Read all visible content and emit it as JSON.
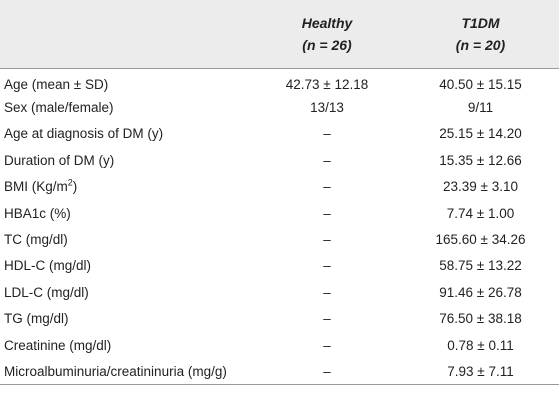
{
  "columns": [
    {
      "title": "",
      "subtitle": ""
    },
    {
      "title": "Healthy",
      "subtitle": "(n = 26)"
    },
    {
      "title": "T1DM",
      "subtitle": "(n = 20)"
    }
  ],
  "rows": [
    {
      "label": "Age (mean ± SD)",
      "healthy": "42.73 ± 12.18",
      "t1dm": "40.50 ± 15.15"
    },
    {
      "label": "Sex (male/female)",
      "healthy": "13/13",
      "t1dm": "9/11"
    },
    {
      "label": "Age at diagnosis of DM (y)",
      "healthy": "–",
      "t1dm": "25.15 ± 14.20"
    },
    {
      "label": "Duration of DM (y)",
      "healthy": "–",
      "t1dm": "15.35 ± 12.66"
    },
    {
      "label": "BMI (Kg/m",
      "label_sup": "2",
      "label_tail": ")",
      "healthy": "–",
      "t1dm": "23.39 ± 3.10"
    },
    {
      "label": "HBA1c (%)",
      "healthy": "–",
      "t1dm": "7.74 ± 1.00"
    },
    {
      "label": "TC (mg/dl)",
      "healthy": "–",
      "t1dm": "165.60 ± 34.26"
    },
    {
      "label": "HDL-C (mg/dl)",
      "healthy": "–",
      "t1dm": "58.75 ± 13.22"
    },
    {
      "label": "LDL-C (mg/dl)",
      "healthy": "–",
      "t1dm": "91.46 ± 26.78"
    },
    {
      "label": "TG (mg/dl)",
      "healthy": "–",
      "t1dm": "76.50 ± 38.18"
    },
    {
      "label": "Creatinine (mg/dl)",
      "healthy": "–",
      "t1dm": "0.78 ± 0.11"
    },
    {
      "label": "Microalbuminuria/creatininuria (mg/g)",
      "healthy": "–",
      "t1dm": "7.93 ± 7.11"
    }
  ]
}
